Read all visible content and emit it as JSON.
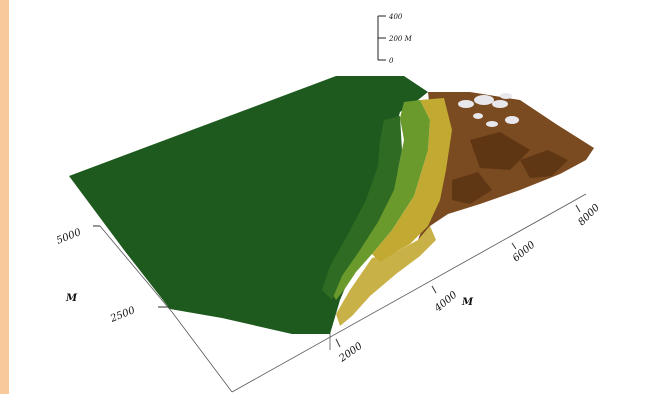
{
  "chart_data": {
    "type": "surface",
    "title": "",
    "surface_kind": "3D terrain relief (elevation) with hypsometric colouring",
    "x_axis": {
      "label": "M",
      "ticks": [
        "2000",
        "4000",
        "6000",
        "8000"
      ],
      "values": [
        2000,
        4000,
        6000,
        8000
      ],
      "range": [
        1500,
        8500
      ]
    },
    "y_axis": {
      "label": "M",
      "ticks": [
        "2500",
        "5000"
      ],
      "values": [
        2500,
        5000
      ],
      "range": [
        1000,
        6000
      ]
    },
    "z_scale": {
      "ticks": [
        "400",
        "200 M",
        "0"
      ],
      "values": [
        400,
        200,
        0
      ],
      "unit": "M"
    },
    "elevation_colors": {
      "lowland": "#1e5a1e",
      "low_hills": "#2f6b22",
      "foothills": "#6b9a2c",
      "middle": "#c2a932",
      "upper": "#7a4a20",
      "high": "#5a3212",
      "peaks": "#e8e8ec"
    }
  },
  "decor": {
    "left_strip_color": "#f8c99a"
  }
}
